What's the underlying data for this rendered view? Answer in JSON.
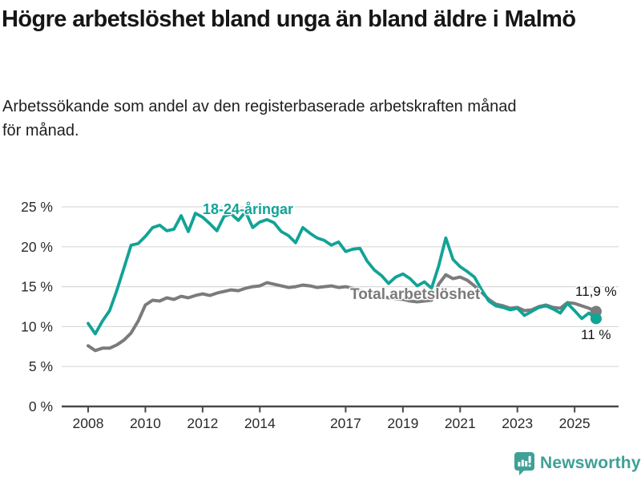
{
  "header": {
    "title": "Högre arbetslöshet bland unga än bland äldre i Malmö",
    "subtitle": "Arbetssökande som andel av den registerbaserade arbetskraften månad för månad."
  },
  "chart_data": {
    "type": "line",
    "x_unit": "decimal year, monthly series shown (sampled quarterly)",
    "x_start": 2008,
    "x_step": 0.25,
    "x_end": 2025.75,
    "ylim": [
      0,
      25
    ],
    "yticks": [
      0,
      5,
      10,
      15,
      20,
      25
    ],
    "ytick_labels": [
      "0 %",
      "5 %",
      "10 %",
      "15 %",
      "20 %",
      "25 %"
    ],
    "xticks": [
      2008,
      2010,
      2012,
      2014,
      2017,
      2019,
      2021,
      2023,
      2025
    ],
    "grid": "horizontal",
    "legend_position": "inline-labels",
    "series": [
      {
        "name": "18-24-åringar",
        "color": "#11a396",
        "end_label": "11 %",
        "end_value": 11.0,
        "values": [
          10.4,
          9.1,
          10.7,
          12.0,
          14.5,
          17.3,
          20.2,
          20.4,
          21.3,
          22.4,
          22.7,
          22.0,
          22.2,
          23.9,
          21.9,
          24.2,
          23.7,
          22.9,
          22.0,
          23.8,
          24.1,
          23.3,
          24.4,
          22.4,
          23.1,
          23.4,
          23.0,
          21.9,
          21.4,
          20.5,
          22.4,
          21.7,
          21.1,
          20.8,
          20.2,
          20.6,
          19.4,
          19.7,
          19.8,
          18.2,
          17.1,
          16.4,
          15.4,
          16.2,
          16.6,
          16.0,
          15.1,
          15.6,
          14.8,
          17.6,
          21.1,
          18.4,
          17.5,
          16.9,
          16.2,
          14.6,
          13.2,
          12.6,
          12.4,
          12.1,
          12.3,
          11.4,
          11.9,
          12.4,
          12.6,
          12.2,
          11.7,
          12.9,
          12.0,
          11.0,
          11.7,
          11.0
        ]
      },
      {
        "name": "Total arbetslöshet",
        "color": "#7b7b7b",
        "end_label": "11,9 %",
        "end_value": 11.9,
        "values": [
          7.6,
          7.0,
          7.3,
          7.3,
          7.7,
          8.3,
          9.2,
          10.7,
          12.7,
          13.3,
          13.2,
          13.6,
          13.4,
          13.8,
          13.6,
          13.9,
          14.1,
          13.9,
          14.2,
          14.4,
          14.6,
          14.5,
          14.8,
          15.0,
          15.1,
          15.5,
          15.3,
          15.1,
          14.9,
          15.0,
          15.2,
          15.1,
          14.9,
          15.0,
          15.1,
          14.9,
          15.0,
          14.8,
          14.5,
          14.2,
          14.0,
          13.8,
          13.6,
          13.5,
          13.4,
          13.2,
          13.1,
          13.2,
          13.3,
          15.3,
          16.5,
          16.0,
          16.2,
          15.8,
          15.1,
          14.3,
          13.4,
          12.8,
          12.6,
          12.3,
          12.4,
          12.0,
          12.1,
          12.5,
          12.7,
          12.4,
          12.3,
          13.0,
          12.9,
          12.6,
          12.3,
          11.9
        ]
      }
    ]
  },
  "colors": {
    "young": "#11a396",
    "total": "#7b7b7b",
    "axis": "#4a4a4a",
    "grid": "#d9d9d9",
    "tick_text": "#2b2b2b",
    "brand": "#3fa096"
  },
  "footer": {
    "brand": "Newsworthy"
  }
}
